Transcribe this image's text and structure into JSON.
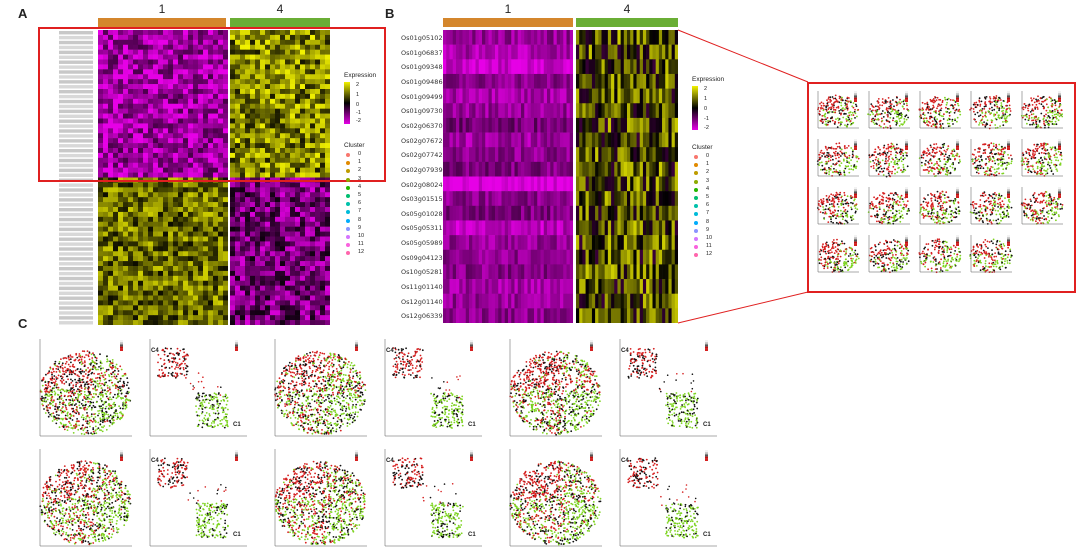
{
  "panels": {
    "A": "A",
    "B": "B",
    "C": "C"
  },
  "cluster_headers": [
    "1",
    "4"
  ],
  "colors": {
    "cluster1_bar": "#d4862c",
    "cluster4_bar": "#6aae35",
    "heat_low": "#e600e6",
    "heat_mid": "#000000",
    "heat_high": "#f2f200",
    "highlight_box": "#e02020",
    "tsne_green": "#7ed321",
    "tsne_red": "#d62020"
  },
  "genes_B": [
    "Os01g0510200",
    "Os01g0683700",
    "Os01g0934800",
    "Os01g0948600",
    "Os01g0949900",
    "Os01g0973000",
    "Os02g0637000",
    "Os02g0767200",
    "Os02g0774200",
    "Os02g0793900",
    "Os02g0802400",
    "Os03g0151500",
    "Os05g0102800",
    "Os05g0531100",
    "Os05g0598900",
    "Os09g0412300",
    "Os10g0528100",
    "Os11g0114000",
    "Os12g0114000",
    "Os12g0633900"
  ],
  "legend": {
    "expression_title": "Expression",
    "expression_ticks_A": [
      "2",
      "1",
      "0",
      "-1",
      "-2"
    ],
    "expression_ticks_B": [
      "2",
      "1",
      "0",
      "-1",
      "-2"
    ],
    "cluster_title": "Cluster",
    "clusters": [
      "0",
      "1",
      "2",
      "3",
      "4",
      "5",
      "6",
      "7",
      "8",
      "9",
      "10",
      "11",
      "12"
    ],
    "cluster_colors": [
      "#f8766d",
      "#e18a00",
      "#be9c00",
      "#8cab00",
      "#24b700",
      "#00be70",
      "#00c1ab",
      "#00bbda",
      "#00acfc",
      "#8b93ff",
      "#d575fe",
      "#f962dd",
      "#ff65ac"
    ]
  },
  "tsne_labels": {
    "c4": "C4",
    "c1": "C1"
  }
}
